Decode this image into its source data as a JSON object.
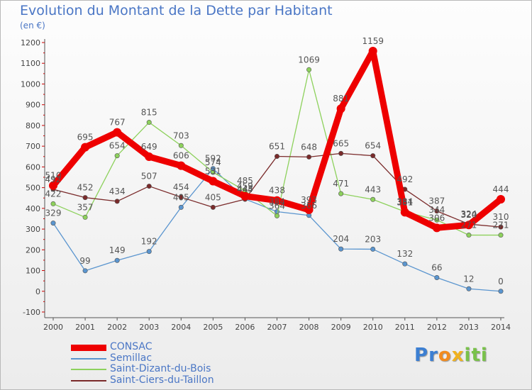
{
  "title": "Evolution du Montant de la Dette par Habitant",
  "subtitle": "(en €)",
  "logo": "Proxiti",
  "chart_data": {
    "type": "line",
    "title": "Evolution du Montant de la Dette par Habitant",
    "subtitle": "(en €)",
    "xlabel": "",
    "ylabel": "",
    "x": [
      "2000",
      "2001",
      "2002",
      "2003",
      "2004",
      "2005",
      "2006",
      "2007",
      "2008",
      "2009",
      "2010",
      "2011",
      "2012",
      "2013",
      "2014"
    ],
    "ylim": [
      -100,
      1200
    ],
    "yticks": [
      -100,
      0,
      100,
      200,
      300,
      400,
      500,
      600,
      700,
      800,
      900,
      1000,
      1100,
      1200
    ],
    "grid": false,
    "legend_position": "bottom-left",
    "series": [
      {
        "name": "CONSAC",
        "color": "#ee0000",
        "values": [
          510,
          695,
          767,
          649,
          606,
          531,
          459,
          438,
          393,
          881,
          1159,
          381,
          306,
          320,
          444
        ],
        "labels": [
          "510",
          "695",
          "767",
          "649",
          "606",
          "531",
          "459",
          "438",
          "393",
          "881",
          "1159",
          "381",
          "306",
          "320",
          "444"
        ]
      },
      {
        "name": "Semillac",
        "color": "#5a95cf",
        "values": [
          329,
          99,
          149,
          192,
          405,
          592,
          445,
          384,
          366,
          204,
          203,
          132,
          66,
          12,
          0
        ],
        "labels": [
          "329",
          "99",
          "149",
          "192",
          "405",
          "592",
          "445",
          "384",
          "366",
          "204",
          "203",
          "132",
          "66",
          "12",
          "0"
        ]
      },
      {
        "name": "Saint-Dizant-du-Bois",
        "color": "#8dd15c",
        "values": [
          422,
          357,
          654,
          815,
          703,
          574,
          485,
          364,
          1069,
          471,
          443,
          384,
          344,
          271,
          271
        ],
        "labels": [
          "422",
          "357",
          "654",
          "815",
          "703",
          "574",
          "485",
          "364",
          "1069",
          "471",
          "443",
          "384",
          "344",
          "271",
          "271"
        ]
      },
      {
        "name": "Saint-Ciers-du-Taillon",
        "color": "#7a2a2a",
        "values": [
          492,
          452,
          434,
          507,
          454,
          405,
          444,
          651,
          648,
          665,
          654,
          492,
          387,
          324,
          310
        ],
        "labels": [
          "492",
          "452",
          "434",
          "507",
          "454",
          "405",
          "444",
          "651",
          "648",
          "665",
          "654",
          "492",
          "387",
          "324",
          "310"
        ]
      }
    ]
  }
}
